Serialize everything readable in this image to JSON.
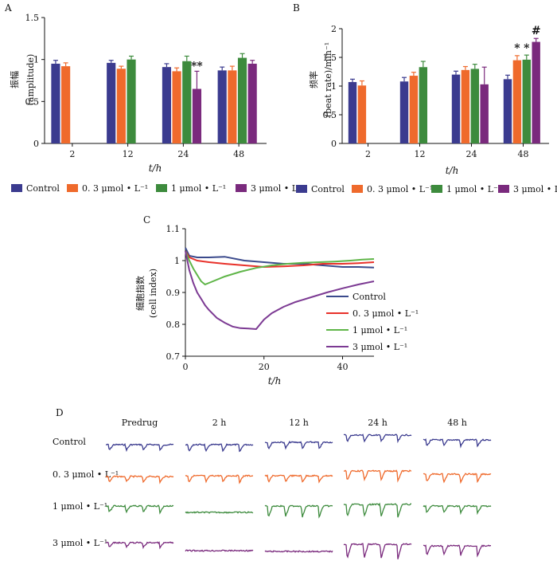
{
  "colors": {
    "control": "#3b3b8f",
    "c03": "#ef6a2c",
    "c1": "#3d8b3d",
    "c3": "#7a2a7d",
    "lineControl": "#3b4a8c",
    "line03": "#e8312a",
    "line1": "#5fb548",
    "line3": "#7c3a93"
  },
  "chart_data": [
    {
      "panel": "A",
      "type": "bar",
      "ylabel_cn": "振幅",
      "ylabel_en": "(amplitude)",
      "xlabel": "t/h",
      "categories": [
        "2",
        "12",
        "24",
        "48"
      ],
      "ylim": [
        0,
        1.5
      ],
      "yticks": [
        "0",
        "0.5",
        "1",
        "1.5"
      ],
      "series": [
        {
          "name": "Control",
          "values": [
            0.95,
            0.96,
            0.91,
            0.87
          ],
          "errors": [
            0.04,
            0.03,
            0.04,
            0.04
          ]
        },
        {
          "name": "0. 3 μmol • L⁻¹",
          "values": [
            0.92,
            0.89,
            0.86,
            0.87
          ],
          "errors": [
            0.04,
            0.03,
            0.04,
            0.05
          ]
        },
        {
          "name": "1 μmol • L⁻¹",
          "values": [
            null,
            1.0,
            0.98,
            1.02
          ],
          "errors": [
            null,
            0.04,
            0.06,
            0.05
          ]
        },
        {
          "name": "3 μmol • L⁻¹",
          "values": [
            null,
            null,
            0.65,
            0.95
          ],
          "errors": [
            null,
            null,
            0.21,
            0.04
          ]
        }
      ],
      "annotations": [
        {
          "category": "24",
          "series": "3 μmol • L⁻¹",
          "text": "**",
          "value": 0.88
        }
      ]
    },
    {
      "panel": "B",
      "type": "bar",
      "ylabel_cn": "频率",
      "ylabel_en": "(beat rate)/min⁻¹",
      "xlabel": "t/h",
      "categories": [
        "2",
        "12",
        "24",
        "48"
      ],
      "ylim": [
        0,
        2
      ],
      "yticks": [
        "0",
        "0.5",
        "1",
        "1.5",
        "2"
      ],
      "series": [
        {
          "name": "Control",
          "values": [
            1.07,
            1.08,
            1.2,
            1.12
          ],
          "errors": [
            0.05,
            0.07,
            0.06,
            0.07
          ]
        },
        {
          "name": "0. 3 μmol • L⁻¹",
          "values": [
            1.01,
            1.18,
            1.28,
            1.45
          ],
          "errors": [
            0.08,
            0.06,
            0.06,
            0.08
          ]
        },
        {
          "name": "1 μmol • L⁻¹",
          "values": [
            null,
            1.33,
            1.3,
            1.46
          ],
          "errors": [
            null,
            0.1,
            0.08,
            0.08
          ]
        },
        {
          "name": "3 μmol • L⁻¹",
          "values": [
            null,
            null,
            1.03,
            1.77
          ],
          "errors": [
            null,
            null,
            0.3,
            0.06
          ]
        }
      ],
      "annotations": [
        {
          "category": "48",
          "series": "0. 3 μmol • L⁻¹",
          "text": "*",
          "value": 1.6
        },
        {
          "category": "48",
          "series": "1 μmol • L⁻¹",
          "text": "*",
          "value": 1.6
        },
        {
          "category": "48",
          "series": "3 μmol • L⁻¹",
          "text": "#",
          "value": 1.9
        }
      ]
    },
    {
      "panel": "C",
      "type": "line",
      "ylabel_cn": "细胞指数",
      "ylabel_en": "(cell index)",
      "xlabel": "t/h",
      "xlim": [
        0,
        48
      ],
      "ylim": [
        0.7,
        1.1
      ],
      "xticks": [
        "0",
        "20",
        "40"
      ],
      "yticks": [
        "0.7",
        "0.8",
        "0.9",
        "1",
        "1.1"
      ],
      "series": [
        {
          "name": "Control",
          "x": [
            0,
            1,
            3,
            6,
            10,
            15,
            20,
            25,
            30,
            35,
            40,
            44,
            48
          ],
          "y": [
            1.04,
            1.015,
            1.01,
            1.01,
            1.012,
            1.0,
            0.995,
            0.99,
            0.99,
            0.985,
            0.98,
            0.98,
            0.978
          ]
        },
        {
          "name": "0. 3 μmol • L⁻¹",
          "x": [
            0,
            1,
            3,
            6,
            10,
            15,
            20,
            25,
            30,
            35,
            40,
            44,
            48
          ],
          "y": [
            1.03,
            1.01,
            1.0,
            0.995,
            0.99,
            0.985,
            0.98,
            0.982,
            0.985,
            0.99,
            0.99,
            0.992,
            0.995
          ]
        },
        {
          "name": "1 μmol • L⁻¹",
          "x": [
            0,
            1,
            2,
            3,
            4,
            5,
            7,
            10,
            14,
            18,
            22,
            26,
            30,
            34,
            38,
            42,
            45,
            48
          ],
          "y": [
            1.03,
            1.0,
            0.975,
            0.955,
            0.935,
            0.925,
            0.935,
            0.95,
            0.965,
            0.977,
            0.985,
            0.99,
            0.993,
            0.995,
            0.997,
            1.0,
            1.003,
            1.005
          ]
        },
        {
          "name": "3 μmol • L⁻¹",
          "x": [
            0,
            1,
            2,
            3,
            4,
            5,
            6,
            8,
            10,
            12,
            14,
            16,
            18,
            19,
            20,
            22,
            25,
            28,
            32,
            36,
            40,
            44,
            48
          ],
          "y": [
            1.03,
            0.97,
            0.93,
            0.9,
            0.88,
            0.86,
            0.845,
            0.82,
            0.805,
            0.793,
            0.788,
            0.787,
            0.785,
            0.8,
            0.815,
            0.835,
            0.855,
            0.87,
            0.885,
            0.9,
            0.913,
            0.925,
            0.935
          ]
        }
      ]
    },
    {
      "panel": "D",
      "type": "traces",
      "columns": [
        "Predrug",
        "2 h",
        "12 h",
        "24 h",
        "48 h"
      ],
      "rows": [
        "Control",
        "0. 3 μmol • L⁻¹",
        "1 μmol • L⁻¹",
        "3 μmol • L⁻¹"
      ]
    }
  ],
  "legend_labels": [
    "Control",
    "0. 3 μmol • L⁻¹",
    "1 μmol • L⁻¹",
    "3 μmol • L⁻¹"
  ]
}
